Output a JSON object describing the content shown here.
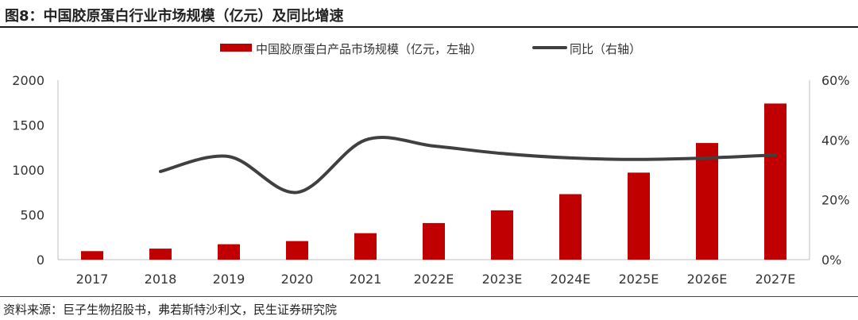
{
  "title": "图8：中国胶原蛋白行业市场规模（亿元）及同比增速",
  "source": "资料来源：巨子生物招股书，弗若斯特沙利文，民生证券研究院",
  "colors": {
    "bar": "#C00000",
    "line": "#404040"
  },
  "chart_data": {
    "type": "bar",
    "title": "",
    "categories": [
      "2017",
      "2018",
      "2019",
      "2020",
      "2021",
      "2022E",
      "2023E",
      "2024E",
      "2025E",
      "2026E",
      "2027E"
    ],
    "series": [
      {
        "name": "中国胶原蛋白产品市场规模（亿元，左轴）",
        "type": "bar",
        "axis": "left",
        "values": [
          95,
          123,
          172,
          207,
          295,
          408,
          550,
          730,
          970,
          1300,
          1740
        ]
      },
      {
        "name": "同比（右轴）",
        "type": "line",
        "axis": "right",
        "values": [
          null,
          29.5,
          34.5,
          22.5,
          40.0,
          38.0,
          35.5,
          34.0,
          33.5,
          34.0,
          35.0
        ]
      }
    ],
    "y_left": {
      "lim": [
        0,
        2000
      ],
      "ticks": [
        "0",
        "500",
        "1000",
        "1500",
        "2000"
      ]
    },
    "y_right": {
      "lim": [
        0,
        60
      ],
      "ticks": [
        "0%",
        "20%",
        "40%",
        "60%"
      ]
    },
    "legend_position": "top-center",
    "grid": false
  }
}
